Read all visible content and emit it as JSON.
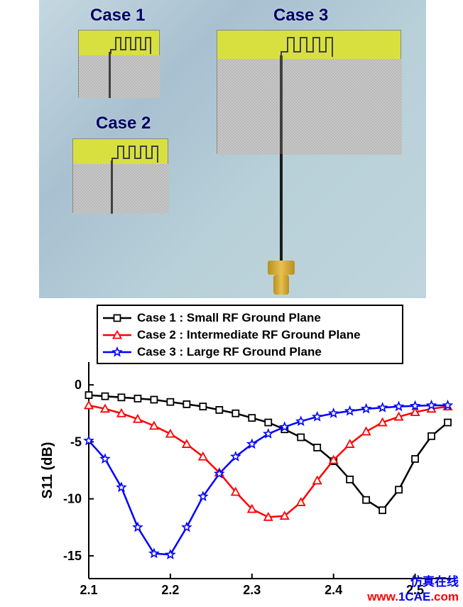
{
  "photo": {
    "labels": {
      "c1": "Case 1",
      "c2": "Case 2",
      "c3": "Case 3"
    }
  },
  "chart": {
    "type": "line",
    "xlabel": "",
    "ylabel": "S11 (dB)",
    "xlim": [
      2.1,
      2.55
    ],
    "ylim": [
      -17,
      2
    ],
    "xticks": [
      2.1,
      2.2,
      2.3,
      2.4,
      2.5
    ],
    "yticks": [
      0,
      -5,
      -10,
      -15
    ],
    "plot_bg": "#ffffff",
    "axis_color": "#000000",
    "tick_fontsize": 18,
    "label_fontsize": 20,
    "legend": {
      "position": "top-left",
      "border_color": "#000000",
      "entries": [
        {
          "label": "Case 1 : Small RF Ground Plane",
          "color": "#000000",
          "marker": "square"
        },
        {
          "label": "Case 2 : Intermediate RF Ground Plane",
          "color": "#ff0000",
          "marker": "triangle"
        },
        {
          "label": "Case 3 : Large RF Ground Plane",
          "color": "#0000ff",
          "marker": "star"
        }
      ]
    },
    "series": [
      {
        "name": "Case 1",
        "color": "#000000",
        "marker": "square",
        "line_width": 2.5,
        "x": [
          2.1,
          2.12,
          2.14,
          2.16,
          2.18,
          2.2,
          2.22,
          2.24,
          2.26,
          2.28,
          2.3,
          2.32,
          2.34,
          2.36,
          2.38,
          2.4,
          2.42,
          2.44,
          2.46,
          2.48,
          2.5,
          2.52,
          2.54
        ],
        "y": [
          -0.9,
          -1.0,
          -1.1,
          -1.2,
          -1.3,
          -1.5,
          -1.7,
          -1.9,
          -2.2,
          -2.5,
          -2.9,
          -3.3,
          -3.9,
          -4.6,
          -5.5,
          -6.7,
          -8.3,
          -10.1,
          -11.0,
          -9.2,
          -6.5,
          -4.5,
          -3.3
        ]
      },
      {
        "name": "Case 2",
        "color": "#ff0000",
        "marker": "triangle",
        "line_width": 2.5,
        "x": [
          2.1,
          2.12,
          2.14,
          2.16,
          2.18,
          2.2,
          2.22,
          2.24,
          2.26,
          2.28,
          2.3,
          2.32,
          2.34,
          2.36,
          2.38,
          2.4,
          2.42,
          2.44,
          2.46,
          2.48,
          2.5,
          2.52,
          2.54
        ],
        "y": [
          -1.8,
          -2.1,
          -2.5,
          -3.0,
          -3.6,
          -4.3,
          -5.2,
          -6.3,
          -7.7,
          -9.4,
          -10.9,
          -11.6,
          -11.5,
          -10.3,
          -8.4,
          -6.6,
          -5.2,
          -4.1,
          -3.3,
          -2.8,
          -2.4,
          -2.1,
          -1.9
        ]
      },
      {
        "name": "Case 3",
        "color": "#0000ff",
        "marker": "star",
        "line_width": 2.5,
        "x": [
          2.1,
          2.12,
          2.14,
          2.16,
          2.18,
          2.2,
          2.22,
          2.24,
          2.26,
          2.28,
          2.3,
          2.32,
          2.34,
          2.36,
          2.38,
          2.4,
          2.42,
          2.44,
          2.46,
          2.48,
          2.5,
          2.52,
          2.54
        ],
        "y": [
          -4.9,
          -6.5,
          -9.0,
          -12.5,
          -14.8,
          -14.9,
          -12.5,
          -9.8,
          -7.8,
          -6.3,
          -5.2,
          -4.3,
          -3.7,
          -3.2,
          -2.8,
          -2.5,
          -2.3,
          -2.1,
          -2.0,
          -1.9,
          -1.85,
          -1.8,
          -1.8
        ]
      }
    ]
  },
  "watermark": {
    "prefix": "www.",
    "main": "1CAE",
    "suffix": ".com",
    "cn": "仿真在线",
    "prefix_color": "#ff0000",
    "main_color": "#0000ff",
    "cn_color": "#0000ff"
  }
}
